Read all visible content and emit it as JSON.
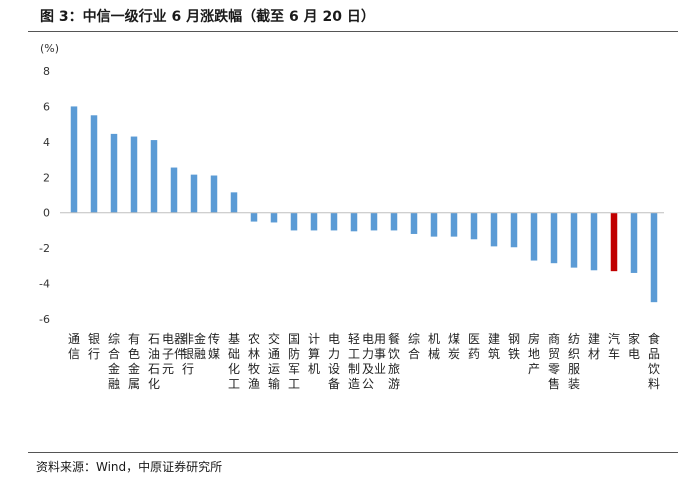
{
  "figure": {
    "title": "图 3：中信一级行业 6 月涨跌幅（截至 6 月 20 日）",
    "source": "资料来源：Wind，中原证券研究所"
  },
  "colors": {
    "bar": "#5b9bd5",
    "highlight": "#c00000",
    "axis": "#bfbfbf"
  },
  "chart_data": {
    "type": "bar",
    "ylabel": "(%)",
    "ylim": [
      -6,
      8
    ],
    "yticks": [
      "8",
      "6",
      "4",
      "2",
      "0",
      "-2",
      "-4",
      "-6"
    ],
    "grid": false,
    "highlight_category": "汽车",
    "categories": [
      "通信",
      "银行",
      "综合金融",
      "有色金属",
      "石油石化",
      "电子元器件",
      "非银行金融",
      "传媒",
      "基础化工",
      "农林牧渔",
      "交通运输",
      "国防军工",
      "计算机",
      "电力设备",
      "轻工制造",
      "电力及公用事业",
      "餐饮旅游",
      "综合",
      "机械",
      "煤炭",
      "医药",
      "建筑",
      "钢铁",
      "房地产",
      "商贸零售",
      "纺织服装",
      "建材",
      "汽车",
      "家电",
      "食品饮料"
    ],
    "values": [
      6.0,
      5.5,
      4.45,
      4.3,
      4.1,
      2.55,
      2.15,
      2.1,
      1.15,
      -0.5,
      -0.55,
      -1.0,
      -1.0,
      -1.0,
      -1.05,
      -1.0,
      -1.0,
      -1.2,
      -1.35,
      -1.35,
      -1.5,
      -1.9,
      -1.95,
      -2.7,
      -2.85,
      -3.1,
      -3.25,
      -3.3,
      -3.4,
      -5.05
    ]
  }
}
